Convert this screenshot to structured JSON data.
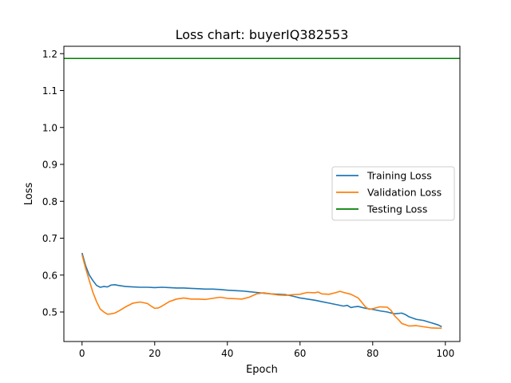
{
  "chart_data": {
    "type": "line",
    "title": "Loss chart: buyerIQ382553",
    "xlabel": "Epoch",
    "ylabel": "Loss",
    "xlim": [
      -5,
      104
    ],
    "ylim": [
      0.42,
      1.22
    ],
    "xticks": [
      0,
      20,
      40,
      60,
      80,
      100
    ],
    "xtick_labels": [
      "0",
      "20",
      "40",
      "60",
      "80",
      "100"
    ],
    "yticks": [
      0.5,
      0.6,
      0.7,
      0.8,
      0.9,
      1.0,
      1.1,
      1.2
    ],
    "ytick_labels": [
      "0.5",
      "0.6",
      "0.7",
      "0.8",
      "0.9",
      "1.0",
      "1.1",
      "1.2"
    ],
    "legend_position": "center-right",
    "grid": false,
    "series": [
      {
        "name": "Training Loss",
        "color": "#1f77b4",
        "x": [
          0,
          1,
          2,
          3,
          4,
          5,
          6,
          7,
          8,
          9,
          10,
          12,
          14,
          16,
          18,
          20,
          22,
          24,
          26,
          28,
          30,
          32,
          34,
          36,
          38,
          40,
          42,
          44,
          46,
          48,
          50,
          52,
          54,
          56,
          58,
          60,
          62,
          64,
          66,
          68,
          70,
          72,
          73,
          74,
          75,
          76,
          78,
          80,
          82,
          84,
          86,
          88,
          89,
          90,
          92,
          94,
          96,
          98,
          99
        ],
        "values": [
          0.66,
          0.625,
          0.6,
          0.585,
          0.572,
          0.567,
          0.569,
          0.568,
          0.573,
          0.574,
          0.572,
          0.569,
          0.568,
          0.567,
          0.567,
          0.566,
          0.567,
          0.566,
          0.565,
          0.565,
          0.564,
          0.563,
          0.562,
          0.562,
          0.561,
          0.559,
          0.558,
          0.557,
          0.555,
          0.553,
          0.551,
          0.549,
          0.548,
          0.547,
          0.543,
          0.538,
          0.535,
          0.532,
          0.528,
          0.524,
          0.52,
          0.516,
          0.518,
          0.512,
          0.514,
          0.515,
          0.51,
          0.507,
          0.503,
          0.5,
          0.495,
          0.497,
          0.493,
          0.487,
          0.48,
          0.477,
          0.471,
          0.465,
          0.46
        ]
      },
      {
        "name": "Validation Loss",
        "color": "#ff7f0e",
        "x": [
          0,
          1,
          2,
          3,
          4,
          5,
          6,
          7,
          8,
          9,
          10,
          12,
          14,
          16,
          18,
          19,
          20,
          21,
          22,
          24,
          26,
          28,
          30,
          32,
          34,
          36,
          38,
          40,
          42,
          44,
          46,
          48,
          50,
          52,
          54,
          56,
          58,
          60,
          62,
          64,
          65,
          66,
          68,
          70,
          71,
          72,
          74,
          76,
          78,
          79,
          80,
          82,
          84,
          85,
          86,
          87,
          88,
          90,
          92,
          94,
          96,
          98,
          99
        ],
        "values": [
          0.655,
          0.618,
          0.585,
          0.553,
          0.528,
          0.508,
          0.5,
          0.494,
          0.495,
          0.497,
          0.502,
          0.514,
          0.524,
          0.527,
          0.523,
          0.516,
          0.51,
          0.511,
          0.516,
          0.528,
          0.535,
          0.538,
          0.535,
          0.535,
          0.534,
          0.537,
          0.54,
          0.537,
          0.536,
          0.535,
          0.54,
          0.549,
          0.552,
          0.549,
          0.546,
          0.545,
          0.547,
          0.548,
          0.553,
          0.552,
          0.554,
          0.549,
          0.548,
          0.553,
          0.556,
          0.553,
          0.548,
          0.538,
          0.514,
          0.507,
          0.509,
          0.514,
          0.513,
          0.505,
          0.49,
          0.48,
          0.469,
          0.462,
          0.463,
          0.46,
          0.457,
          0.456,
          0.456
        ]
      },
      {
        "name": "Testing Loss",
        "color": "#008000",
        "x": [
          -5,
          104
        ],
        "values": [
          1.187,
          1.187
        ]
      }
    ]
  }
}
